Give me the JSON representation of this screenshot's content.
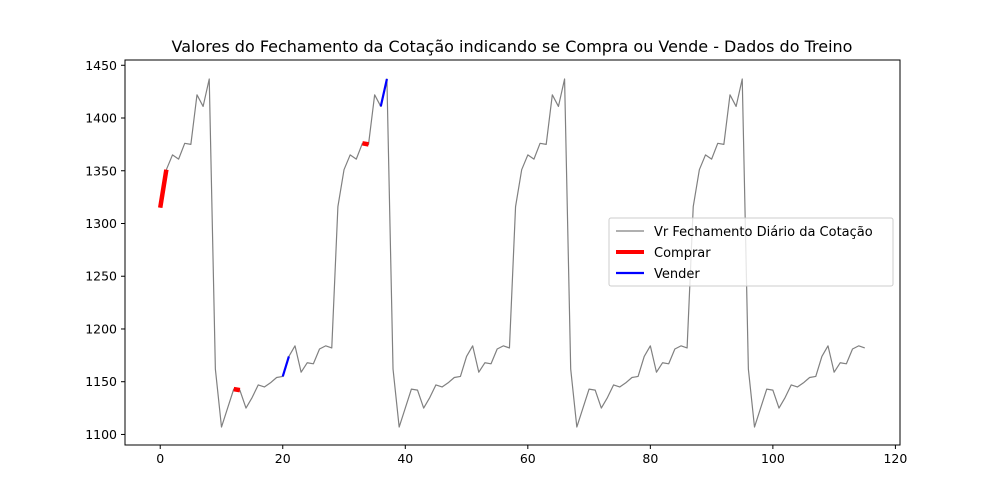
{
  "chart_data": {
    "type": "line",
    "title": "Valores do Fechamento da Cotação indicando se Compra ou Vende - Dados do Treino",
    "xlabel": "",
    "ylabel": "",
    "xlim": [
      -5.75,
      120.75
    ],
    "ylim": [
      1090,
      1455
    ],
    "xticks": [
      0,
      20,
      40,
      60,
      80,
      100,
      120
    ],
    "yticks": [
      1100,
      1150,
      1200,
      1250,
      1300,
      1350,
      1400,
      1450
    ],
    "grid": false,
    "legend_position": "center-right",
    "series": [
      {
        "name": "Vr Fechamento Diário da Cotação",
        "color": "#808080",
        "x": [
          0,
          1,
          2,
          3,
          4,
          5,
          6,
          7,
          8,
          9,
          10,
          11,
          12,
          13,
          14,
          15,
          16,
          17,
          18,
          19,
          20,
          21,
          22,
          23,
          24,
          25,
          26,
          27,
          28,
          29,
          30,
          31,
          32,
          33,
          34,
          35,
          36,
          37,
          38,
          39,
          40,
          41,
          42,
          43,
          44,
          45,
          46,
          47,
          48,
          49,
          50,
          51,
          52,
          53,
          54,
          55,
          56,
          57,
          58,
          59,
          60,
          61,
          62,
          63,
          64,
          65,
          66,
          67,
          68,
          69,
          70,
          71,
          72,
          73,
          74,
          75,
          76,
          77,
          78,
          79,
          80,
          81,
          82,
          83,
          84,
          85,
          86,
          87,
          88,
          89,
          90,
          91,
          92,
          93,
          94,
          95,
          96,
          97,
          98,
          99,
          100,
          101,
          102,
          103,
          104,
          105,
          106,
          107,
          108,
          109,
          110,
          111,
          112,
          113,
          114,
          115
        ],
        "y": [
          1315,
          1351,
          1365,
          1361,
          1376,
          1375,
          1422,
          1411,
          1437,
          1162,
          1107,
          1125,
          1143,
          1142,
          1125,
          1135,
          1147,
          1145,
          1149,
          1154,
          1155,
          1174,
          1184,
          1159,
          1168,
          1167,
          1181,
          1184,
          1182,
          1316,
          1351,
          1365,
          1361,
          1376,
          1375,
          1422,
          1411,
          1437,
          1162,
          1107,
          1125,
          1143,
          1142,
          1125,
          1135,
          1147,
          1145,
          1149,
          1154,
          1155,
          1174,
          1184,
          1159,
          1168,
          1167,
          1181,
          1184,
          1182,
          1316,
          1351,
          1365,
          1361,
          1376,
          1375,
          1422,
          1411,
          1437,
          1162,
          1107,
          1125,
          1143,
          1142,
          1125,
          1135,
          1147,
          1145,
          1149,
          1154,
          1155,
          1174,
          1184,
          1159,
          1168,
          1167,
          1181,
          1184,
          1182,
          1316,
          1351,
          1365,
          1361,
          1376,
          1375,
          1422,
          1411,
          1437,
          1162,
          1107,
          1125,
          1143,
          1142,
          1125,
          1135,
          1147,
          1145,
          1149,
          1154,
          1155,
          1174,
          1184,
          1159,
          1168,
          1167,
          1181,
          1184,
          1182
        ]
      },
      {
        "name": "Comprar",
        "color": "#ff0000",
        "segments": [
          {
            "x": [
              0,
              1
            ],
            "y": [
              1315,
              1351
            ]
          },
          {
            "x": [
              12,
              13
            ],
            "y": [
              1143,
              1142
            ]
          },
          {
            "x": [
              33,
              34
            ],
            "y": [
              1376,
              1375
            ]
          }
        ]
      },
      {
        "name": "Vender",
        "color": "#0000ff",
        "segments": [
          {
            "x": [
              20,
              21
            ],
            "y": [
              1155,
              1174
            ]
          },
          {
            "x": [
              36,
              37
            ],
            "y": [
              1411,
              1437
            ]
          }
        ]
      }
    ]
  }
}
